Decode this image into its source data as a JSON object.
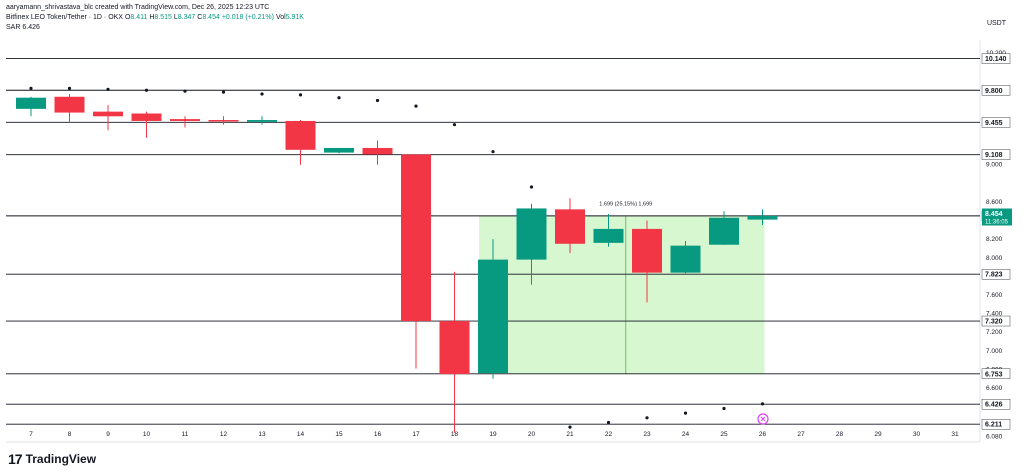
{
  "header": {
    "author_line": "aaryamann_shrivastava_blc created with TradingView.com, Dec 26, 2025 12:23 UTC",
    "symbol": "Bitfinex LEO Token/Tether · 1D · OKX",
    "o_label": "O",
    "o_value": "8.411",
    "h_label": "H",
    "h_value": "8.515",
    "l_label": "L",
    "l_value": "8.347",
    "c_label": "C",
    "c_value": "8.454",
    "change": "+0.018 (+0.21%)",
    "vol_label": "Vol",
    "vol_value": "5.91K",
    "sar_label": "SAR",
    "sar_value": "6.426"
  },
  "currency": "USDT",
  "footer": {
    "logo_mark": "17",
    "logo_name": "TradingView"
  },
  "chart_data": {
    "type": "candlestick",
    "ylim": [
      6.02,
      10.34
    ],
    "x_ticks": [
      "7",
      "8",
      "9",
      "10",
      "11",
      "12",
      "13",
      "14",
      "15",
      "16",
      "17",
      "18",
      "19",
      "20",
      "21",
      "22",
      "23",
      "24",
      "25",
      "26",
      "27",
      "28",
      "29",
      "30",
      "31"
    ],
    "y_ticks": [
      "6.080",
      "6.400",
      "6.600",
      "6.800",
      "7.000",
      "7.200",
      "7.400",
      "7.600",
      "8.000",
      "8.200",
      "8.400",
      "8.600",
      "9.000",
      "9.800",
      "10.200"
    ],
    "candles": [
      {
        "x": "7",
        "o": 9.6,
        "h": 9.73,
        "l": 9.52,
        "c": 9.72
      },
      {
        "x": "8",
        "o": 9.73,
        "h": 9.76,
        "l": 9.45,
        "c": 9.56
      },
      {
        "x": "9",
        "o": 9.57,
        "h": 9.64,
        "l": 9.37,
        "c": 9.52
      },
      {
        "x": "10",
        "o": 9.55,
        "h": 9.57,
        "l": 9.29,
        "c": 9.47
      },
      {
        "x": "11",
        "o": 9.49,
        "h": 9.52,
        "l": 9.4,
        "c": 9.47
      },
      {
        "x": "12",
        "o": 9.48,
        "h": 9.52,
        "l": 9.43,
        "c": 9.47
      },
      {
        "x": "13",
        "o": 9.46,
        "h": 9.52,
        "l": 9.43,
        "c": 9.48
      },
      {
        "x": "14",
        "o": 9.47,
        "h": 9.48,
        "l": 9.0,
        "c": 9.16
      },
      {
        "x": "15",
        "o": 9.13,
        "h": 9.16,
        "l": 9.12,
        "c": 9.18
      },
      {
        "x": "16",
        "o": 9.18,
        "h": 9.26,
        "l": 9.0,
        "c": 9.11
      },
      {
        "x": "17",
        "o": 9.11,
        "h": 9.11,
        "l": 6.81,
        "c": 7.32
      },
      {
        "x": "18",
        "o": 7.32,
        "h": 7.85,
        "l": 6.12,
        "c": 6.75
      },
      {
        "x": "19",
        "o": 6.76,
        "h": 8.2,
        "l": 6.7,
        "c": 7.98
      },
      {
        "x": "20",
        "o": 7.98,
        "h": 8.58,
        "l": 7.71,
        "c": 8.53
      },
      {
        "x": "21",
        "o": 8.52,
        "h": 8.64,
        "l": 8.05,
        "c": 8.15
      },
      {
        "x": "22",
        "o": 8.16,
        "h": 8.47,
        "l": 8.12,
        "c": 8.31
      },
      {
        "x": "23",
        "o": 8.31,
        "h": 8.4,
        "l": 7.52,
        "c": 7.84
      },
      {
        "x": "24",
        "o": 7.84,
        "h": 8.18,
        "l": 7.83,
        "c": 8.13
      },
      {
        "x": "25",
        "o": 8.14,
        "h": 8.5,
        "l": 8.14,
        "c": 8.43
      },
      {
        "x": "26",
        "o": 8.41,
        "h": 8.52,
        "l": 8.35,
        "c": 8.45
      }
    ],
    "sar": [
      {
        "x": "7",
        "y": 9.82
      },
      {
        "x": "8",
        "y": 9.82
      },
      {
        "x": "9",
        "y": 9.81
      },
      {
        "x": "10",
        "y": 9.8
      },
      {
        "x": "11",
        "y": 9.79
      },
      {
        "x": "12",
        "y": 9.78
      },
      {
        "x": "13",
        "y": 9.76
      },
      {
        "x": "14",
        "y": 9.75
      },
      {
        "x": "15",
        "y": 9.72
      },
      {
        "x": "16",
        "y": 9.69
      },
      {
        "x": "17",
        "y": 9.63
      },
      {
        "x": "18",
        "y": 9.43
      },
      {
        "x": "19",
        "y": 9.14
      },
      {
        "x": "20",
        "y": 8.76
      },
      {
        "x": "21",
        "y": 6.18
      },
      {
        "x": "22",
        "y": 6.23
      },
      {
        "x": "23",
        "y": 6.28
      },
      {
        "x": "24",
        "y": 6.33
      },
      {
        "x": "25",
        "y": 6.38
      },
      {
        "x": "26",
        "y": 6.43
      }
    ],
    "horizontal_levels": [
      {
        "value": 10.14,
        "label": "10.140"
      },
      {
        "value": 9.8,
        "label": "9.800"
      },
      {
        "value": 9.455,
        "label": "9.455"
      },
      {
        "value": 9.108,
        "label": "9.108"
      },
      {
        "value": 8.45,
        "label": "8.450"
      },
      {
        "value": 7.823,
        "label": "7.823"
      },
      {
        "value": 7.32,
        "label": "7.320"
      },
      {
        "value": 6.753,
        "label": "6.753"
      },
      {
        "value": 6.426,
        "label": "6.426"
      },
      {
        "value": 6.211,
        "label": "6.211"
      }
    ],
    "price_tag": {
      "value": 8.454,
      "label": "8.454",
      "countdown": "11:36:05",
      "color": "#089981"
    },
    "measure": {
      "x_start": "19",
      "x_end": "26",
      "y_low": 6.753,
      "y_high": 8.452,
      "label": "1.699 (25.15%) 1,699"
    },
    "colors": {
      "up": "#089981",
      "down": "#f23645",
      "measure_fill": "#ccf5c4",
      "measure_line": "#6cc45a"
    }
  }
}
